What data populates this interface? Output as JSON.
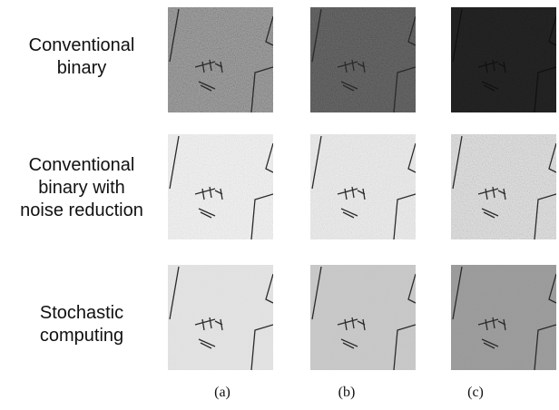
{
  "rows": [
    {
      "lines": [
        "Conventional",
        "binary"
      ],
      "tone": [
        "#a9a9a9",
        "#6e6e6e",
        "#262626"
      ],
      "noise": [
        0.95,
        1.0,
        0.9
      ]
    },
    {
      "lines": [
        "Conventional",
        "binary with",
        "noise reduction"
      ],
      "tone": [
        "#f4f4f4",
        "#f0f0f0",
        "#e6e6e6"
      ],
      "noise": [
        0.3,
        0.35,
        0.55
      ]
    },
    {
      "lines": [
        "Stochastic",
        "computing"
      ],
      "tone": [
        "#e3e3e3",
        "#c9c9c9",
        "#9d9d9d"
      ],
      "noise": [
        0.05,
        0.05,
        0.08
      ]
    }
  ],
  "columns": [
    {
      "label": "(a)"
    },
    {
      "label": "(b)"
    },
    {
      "label": "(c)"
    }
  ]
}
